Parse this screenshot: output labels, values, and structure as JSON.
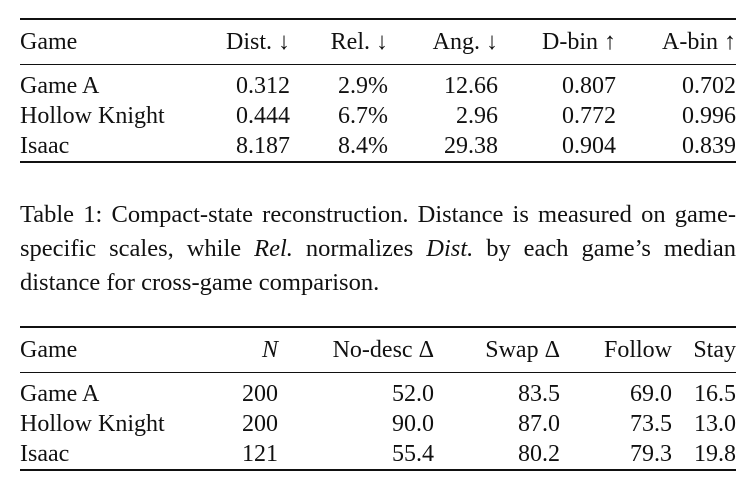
{
  "table1": {
    "headers": [
      "Game",
      "Dist. ↓",
      "Rel. ↓",
      "Ang. ↓",
      "D-bin ↑",
      "A-bin ↑"
    ],
    "rows": [
      [
        "Game A",
        "0.312",
        "2.9%",
        "12.66",
        "0.807",
        "0.702"
      ],
      [
        "Hollow Knight",
        "0.444",
        "6.7%",
        "2.96",
        "0.772",
        "0.996"
      ],
      [
        "Isaac",
        "8.187",
        "8.4%",
        "29.38",
        "0.904",
        "0.839"
      ]
    ]
  },
  "caption": {
    "part1": "Table 1: Compact-state reconstruction. Distance is measured on game-specific scales, while ",
    "italic1": "Rel.",
    "part2": " normalizes ",
    "italic2": "Dist.",
    "part3": " by each game’s median distance for cross-game comparison."
  },
  "table2": {
    "headers": [
      "Game",
      "N",
      "No-desc Δ",
      "Swap Δ",
      "Follow",
      "Stay"
    ],
    "rows": [
      [
        "Game A",
        "200",
        "52.0",
        "83.5",
        "69.0",
        "16.5"
      ],
      [
        "Hollow Knight",
        "200",
        "90.0",
        "87.0",
        "73.5",
        "13.0"
      ],
      [
        "Isaac",
        "121",
        "55.4",
        "80.2",
        "79.3",
        "19.8"
      ]
    ]
  }
}
